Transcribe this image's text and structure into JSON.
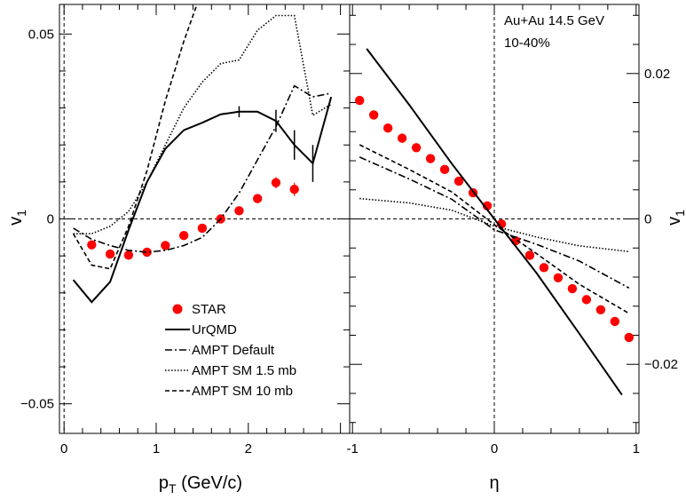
{
  "chart_data": [
    {
      "type": "scatter",
      "panel": "left",
      "xlabel": "p",
      "xlabel_sub": "T",
      "xlabel_unit": " (GeV/c)",
      "ylabel": "v",
      "ylabel_sub": "1",
      "xlim": [
        -0.05,
        3.1
      ],
      "ylim": [
        -0.058,
        0.058
      ],
      "xticks": [
        "0",
        "1",
        "2"
      ],
      "xtick_values": [
        0,
        1,
        2
      ],
      "yticks": [
        "0.05",
        "0",
        "−0.05"
      ],
      "ytick_values": [
        0.05,
        0,
        -0.05
      ],
      "series": [
        {
          "name": "STAR",
          "style": "markers",
          "color": "#ff0000",
          "x": [
            0.3,
            0.5,
            0.7,
            0.9,
            1.1,
            1.3,
            1.5,
            1.7,
            1.9,
            2.1,
            2.3,
            2.5
          ],
          "y": [
            -0.007,
            -0.0095,
            -0.0098,
            -0.009,
            -0.0072,
            -0.0045,
            -0.0025,
            0.0,
            0.0022,
            0.0055,
            0.0098,
            0.008
          ],
          "err": [
            0.0008,
            0.0008,
            0.0008,
            0.0008,
            0.0008,
            0.0008,
            0.0008,
            0.0008,
            0.001,
            0.0012,
            0.0015,
            0.0018
          ]
        },
        {
          "name": "UrQMD",
          "style": "solid",
          "x": [
            0.1,
            0.3,
            0.5,
            0.7,
            0.9,
            1.1,
            1.3,
            1.5,
            1.7,
            1.9,
            2.1,
            2.3,
            2.5,
            2.7,
            2.9
          ],
          "y": [
            -0.0165,
            -0.0225,
            -0.017,
            -0.003,
            0.01,
            0.019,
            0.024,
            0.026,
            0.0283,
            0.029,
            0.029,
            0.0265,
            0.02,
            0.015,
            0.033
          ]
        },
        {
          "name": "AMPT Default",
          "style": "dashdot",
          "x": [
            0.1,
            0.3,
            0.5,
            0.7,
            0.9,
            1.1,
            1.3,
            1.5,
            1.7,
            1.9,
            2.1,
            2.3,
            2.5,
            2.7,
            2.9
          ],
          "y": [
            -0.0025,
            -0.0055,
            -0.0072,
            -0.0085,
            -0.009,
            -0.0085,
            -0.0072,
            -0.005,
            0.0,
            0.007,
            0.016,
            0.025,
            0.036,
            0.033,
            0.034
          ]
        },
        {
          "name": "AMPT SM 1.5 mb",
          "style": "dotted",
          "x": [
            0.1,
            0.3,
            0.5,
            0.7,
            0.9,
            1.1,
            1.3,
            1.5,
            1.7,
            1.9,
            2.1,
            2.3,
            2.5,
            2.7,
            2.9
          ],
          "y": [
            -0.004,
            -0.004,
            -0.002,
            0.002,
            0.01,
            0.02,
            0.03,
            0.037,
            0.042,
            0.043,
            0.051,
            0.055,
            0.055,
            0.028,
            0.031
          ]
        },
        {
          "name": "AMPT SM 10 mb",
          "style": "dashed",
          "x": [
            0.1,
            0.3,
            0.5,
            0.7,
            0.9,
            1.1,
            1.3,
            1.5
          ],
          "y": [
            -0.004,
            -0.0125,
            -0.0135,
            -0.002,
            0.013,
            0.032,
            0.048,
            0.062
          ]
        }
      ],
      "legend": {
        "placement": "lower-left",
        "entries": [
          "STAR",
          "UrQMD",
          "AMPT Default",
          "AMPT SM 1.5 mb",
          "AMPT SM 10 mb"
        ]
      }
    },
    {
      "type": "scatter",
      "panel": "right",
      "xlabel": "η",
      "ylabel": "v",
      "ylabel_sub": "1",
      "xlim": [
        -1.02,
        1.02
      ],
      "ylim": [
        -0.0295,
        0.0295
      ],
      "xticks": [
        "-1",
        "0",
        "1"
      ],
      "xtick_values": [
        -1,
        0,
        1
      ],
      "yticks": [
        "0.02",
        "0",
        "−0.02"
      ],
      "ytick_values": [
        0.02,
        0,
        -0.02
      ],
      "annotation": [
        "Au+Au 14.5 GeV",
        "10-40%"
      ],
      "series": [
        {
          "name": "STAR",
          "style": "markers",
          "color": "#ff0000",
          "x": [
            -0.95,
            -0.85,
            -0.75,
            -0.65,
            -0.55,
            -0.45,
            -0.35,
            -0.25,
            -0.15,
            -0.05,
            0.05,
            0.15,
            0.25,
            0.35,
            0.45,
            0.55,
            0.65,
            0.75,
            0.85,
            0.95
          ],
          "y": [
            0.0163,
            0.0143,
            0.0125,
            0.0111,
            0.0098,
            0.0083,
            0.0068,
            0.0052,
            0.0036,
            0.0018,
            -0.0007,
            -0.003,
            -0.005,
            -0.0067,
            -0.0081,
            -0.0096,
            -0.0111,
            -0.0125,
            -0.0141,
            -0.0163
          ]
        },
        {
          "name": "UrQMD",
          "style": "solid",
          "x": [
            -0.9,
            -0.6,
            -0.3,
            0.0,
            0.3,
            0.6,
            0.9
          ],
          "y": [
            0.0234,
            0.0157,
            0.0076,
            0.0,
            -0.0075,
            -0.0158,
            -0.0242
          ]
        },
        {
          "name": "AMPT Default",
          "style": "dashdot",
          "x": [
            -0.95,
            -0.6,
            -0.3,
            0.0,
            0.3,
            0.6,
            0.95
          ],
          "y": [
            0.0085,
            0.0055,
            0.0027,
            -0.0015,
            -0.0035,
            -0.0058,
            -0.0095
          ]
        },
        {
          "name": "AMPT SM 1.5 mb",
          "style": "dotted",
          "x": [
            -0.95,
            -0.6,
            -0.3,
            0.0,
            0.3,
            0.6,
            0.95
          ],
          "y": [
            0.0028,
            0.0022,
            0.0012,
            -0.001,
            -0.0025,
            -0.0037,
            -0.0045
          ]
        },
        {
          "name": "AMPT SM 10 mb",
          "style": "dashed",
          "x": [
            -0.95,
            -0.6,
            -0.3,
            0.0,
            0.3,
            0.6,
            0.95
          ],
          "y": [
            0.0102,
            0.0068,
            0.0037,
            -0.0008,
            -0.0048,
            -0.009,
            -0.013
          ]
        }
      ]
    }
  ]
}
